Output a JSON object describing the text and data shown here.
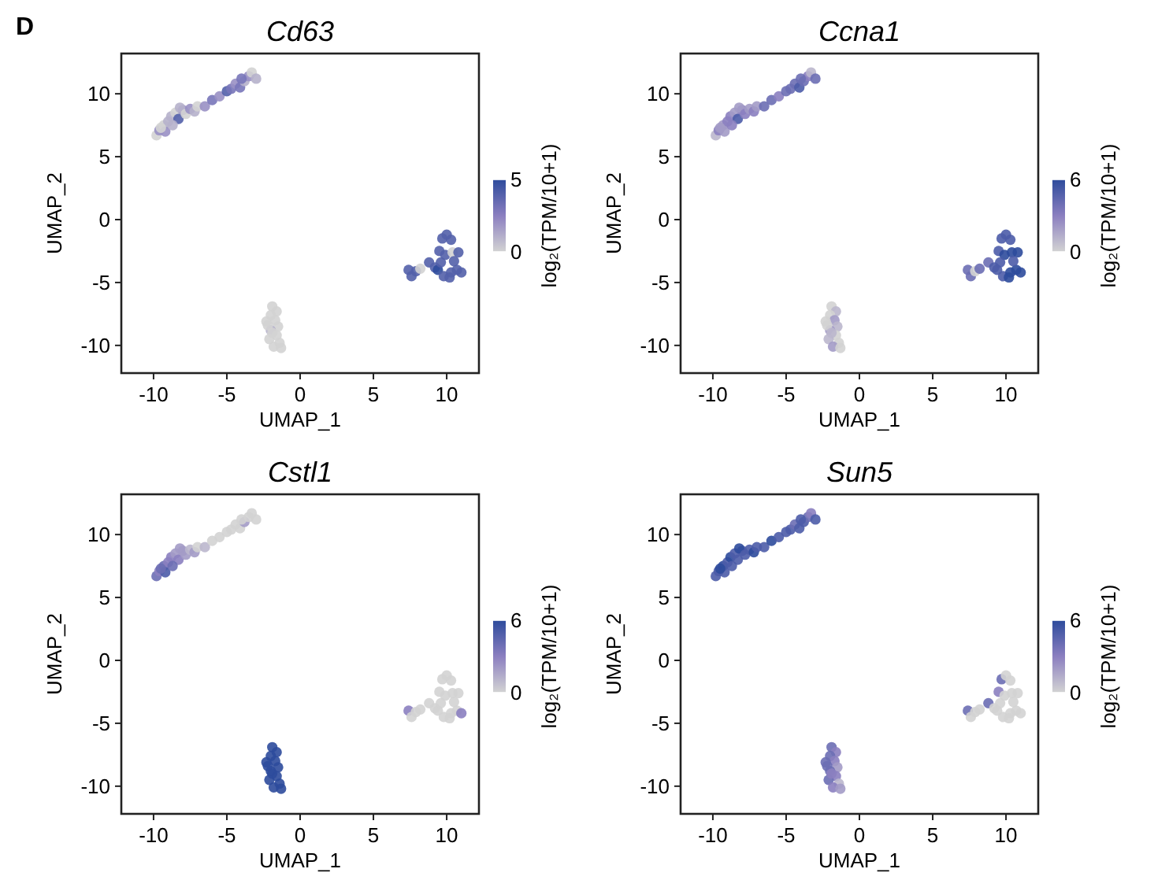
{
  "chart_data": [
    {
      "type": "scatter",
      "title": "Cd63",
      "xlabel": "UMAP_1",
      "ylabel": "UMAP_2",
      "clabel": "log₂(TPM/10+1)",
      "annotations": [
        "D"
      ],
      "marker": "circle",
      "xlim": [
        -12.2,
        12.2
      ],
      "ylim": [
        -12.2,
        13.2
      ],
      "xticks": [
        -10,
        -5,
        0,
        5,
        10
      ],
      "yticks": [
        -10,
        -5,
        0,
        5,
        10
      ],
      "clim": [
        0,
        5
      ],
      "cticks": [
        0,
        5
      ],
      "x": [
        -9.8,
        -9.6,
        -9.3,
        -9.0,
        -9.2,
        -8.8,
        -8.5,
        -8.3,
        -8.0,
        -8.2,
        -7.8,
        -7.5,
        -7.2,
        -7.0,
        -6.5,
        -6.0,
        -5.5,
        -5.0,
        -4.7,
        -4.4,
        -4.1,
        -3.8,
        -3.5,
        -3.3,
        -3.0,
        -4.0,
        -8.7,
        -9.5,
        -1.9,
        -1.6,
        -2.0,
        -1.7,
        -2.3,
        -1.5,
        -2.0,
        -1.6,
        -2.1,
        -1.4,
        -1.8,
        -1.3,
        -2.2,
        -1.9,
        7.4,
        7.6,
        7.9,
        8.2,
        8.8,
        9.2,
        9.5,
        9.7,
        10.0,
        10.3,
        9.9,
        10.4,
        10.8,
        9.4,
        9.8,
        10.3,
        10.7,
        11.0,
        10.5,
        9.6,
        10.2
      ],
      "values": [
        6.7,
        7.1,
        7.5,
        7.8,
        7.0,
        8.2,
        8.5,
        8.0,
        8.7,
        8.9,
        8.4,
        8.8,
        8.6,
        9.0,
        9.0,
        9.5,
        9.8,
        10.2,
        10.4,
        10.8,
        10.5,
        11.0,
        11.4,
        11.7,
        11.2,
        11.2,
        7.5,
        7.3,
        -6.9,
        -7.3,
        -7.6,
        -8.0,
        -8.1,
        -8.5,
        -8.8,
        -9.2,
        -9.5,
        -9.8,
        -10.1,
        -10.2,
        -8.4,
        -9.0,
        -4.0,
        -4.5,
        -4.1,
        -3.9,
        -3.4,
        -3.8,
        -2.5,
        -1.5,
        -1.2,
        -1.6,
        -2.8,
        -2.6,
        -2.6,
        -4.0,
        -4.5,
        -4.2,
        -4.0,
        -4.2,
        -3.3,
        -3.4,
        -4.6
      ],
      "cvalues": [
        0,
        2,
        0,
        1,
        2,
        1,
        0,
        4,
        2,
        1,
        0,
        2,
        1,
        0,
        2,
        3,
        2,
        4,
        3,
        2,
        3,
        1,
        2,
        0,
        1,
        3,
        1,
        0,
        0,
        0,
        0,
        0,
        0,
        0,
        1,
        0,
        0,
        0,
        0,
        0,
        0,
        0,
        4,
        4,
        4,
        0,
        4,
        4,
        4,
        4,
        4,
        4,
        4,
        0,
        4,
        5,
        4,
        4,
        4,
        4,
        4,
        4,
        4
      ]
    },
    {
      "type": "scatter",
      "title": "Ccna1",
      "xlabel": "UMAP_1",
      "ylabel": "UMAP_2",
      "clabel": "log₂(TPM/10+1)",
      "marker": "circle",
      "xlim": [
        -12.2,
        12.2
      ],
      "ylim": [
        -12.2,
        13.2
      ],
      "xticks": [
        -10,
        -5,
        0,
        5,
        10
      ],
      "yticks": [
        -10,
        -5,
        0,
        5,
        10
      ],
      "clim": [
        0,
        6
      ],
      "cticks": [
        0,
        6
      ],
      "x": [
        -9.8,
        -9.6,
        -9.3,
        -9.0,
        -9.2,
        -8.8,
        -8.5,
        -8.3,
        -8.0,
        -8.2,
        -7.8,
        -7.5,
        -7.2,
        -7.0,
        -6.5,
        -6.0,
        -5.5,
        -5.0,
        -4.7,
        -4.4,
        -4.1,
        -3.8,
        -3.5,
        -3.3,
        -3.0,
        -4.0,
        -8.7,
        -9.5,
        -1.9,
        -1.6,
        -2.0,
        -1.7,
        -2.3,
        -1.5,
        -2.0,
        -1.6,
        -2.1,
        -1.4,
        -1.8,
        -1.3,
        -2.2,
        -1.9,
        7.4,
        7.6,
        7.9,
        8.2,
        8.8,
        9.2,
        9.5,
        9.7,
        10.0,
        10.3,
        9.9,
        10.4,
        10.8,
        9.4,
        9.8,
        10.3,
        10.7,
        11.0,
        10.5,
        9.6,
        10.2
      ],
      "values": [
        6.7,
        7.1,
        7.5,
        7.8,
        7.0,
        8.2,
        8.5,
        8.0,
        8.7,
        8.9,
        8.4,
        8.8,
        8.6,
        9.0,
        9.0,
        9.5,
        9.8,
        10.2,
        10.4,
        10.8,
        10.5,
        11.0,
        11.4,
        11.7,
        11.2,
        11.2,
        7.5,
        7.3,
        -6.9,
        -7.3,
        -7.6,
        -8.0,
        -8.1,
        -8.5,
        -8.8,
        -9.2,
        -9.5,
        -9.8,
        -10.1,
        -10.2,
        -8.4,
        -9.0,
        -4.0,
        -4.5,
        -4.1,
        -3.9,
        -3.4,
        -3.8,
        -2.5,
        -1.5,
        -1.2,
        -1.6,
        -2.8,
        -2.6,
        -2.6,
        -4.0,
        -4.5,
        -4.2,
        -4.0,
        -4.2,
        -3.3,
        -3.4,
        -4.6
      ],
      "cvalues": [
        1,
        3,
        2,
        3,
        2,
        3,
        2,
        5,
        3,
        2,
        3,
        2,
        3,
        2,
        4,
        4,
        3,
        4,
        4,
        4,
        5,
        4,
        3,
        1,
        4,
        4,
        3,
        2,
        0,
        1,
        0,
        2,
        0,
        1,
        2,
        0,
        1,
        0,
        2,
        0,
        0,
        1,
        4,
        4,
        0,
        4,
        4,
        5,
        5,
        5,
        5,
        5,
        6,
        6,
        6,
        5,
        5,
        6,
        6,
        6,
        5,
        5,
        6
      ]
    },
    {
      "type": "scatter",
      "title": "Cstl1",
      "xlabel": "UMAP_1",
      "ylabel": "UMAP_2",
      "clabel": "log₂(TPM/10+1)",
      "marker": "circle",
      "xlim": [
        -12.2,
        12.2
      ],
      "ylim": [
        -12.2,
        13.2
      ],
      "xticks": [
        -10,
        -5,
        0,
        5,
        10
      ],
      "yticks": [
        -10,
        -5,
        0,
        5,
        10
      ],
      "clim": [
        0,
        6
      ],
      "cticks": [
        0,
        6
      ],
      "x": [
        -9.8,
        -9.6,
        -9.3,
        -9.0,
        -9.2,
        -8.8,
        -8.5,
        -8.3,
        -8.0,
        -8.2,
        -7.8,
        -7.5,
        -7.2,
        -7.0,
        -6.5,
        -6.0,
        -5.5,
        -5.0,
        -4.7,
        -4.4,
        -4.1,
        -3.8,
        -3.5,
        -3.3,
        -3.0,
        -4.0,
        -8.7,
        -9.5,
        -1.9,
        -1.6,
        -2.0,
        -1.7,
        -2.3,
        -1.5,
        -2.0,
        -1.6,
        -2.1,
        -1.4,
        -1.8,
        -1.3,
        -2.2,
        -1.9,
        7.4,
        7.6,
        7.9,
        8.2,
        8.8,
        9.2,
        9.5,
        9.7,
        10.0,
        10.3,
        9.9,
        10.4,
        10.8,
        9.4,
        9.8,
        10.3,
        10.7,
        11.0,
        10.5,
        9.6,
        10.2
      ],
      "values": [
        6.7,
        7.1,
        7.5,
        7.8,
        7.0,
        8.2,
        8.5,
        8.0,
        8.7,
        8.9,
        8.4,
        8.8,
        8.6,
        9.0,
        9.0,
        9.5,
        9.8,
        10.2,
        10.4,
        10.8,
        10.5,
        11.0,
        11.4,
        11.7,
        11.2,
        11.2,
        7.5,
        7.3,
        -6.9,
        -7.3,
        -7.6,
        -8.0,
        -8.1,
        -8.5,
        -8.8,
        -9.2,
        -9.5,
        -9.8,
        -10.1,
        -10.2,
        -8.4,
        -9.0,
        -4.0,
        -4.5,
        -4.1,
        -3.9,
        -3.4,
        -3.8,
        -2.5,
        -1.5,
        -1.2,
        -1.6,
        -2.8,
        -2.6,
        -2.6,
        -4.0,
        -4.5,
        -4.2,
        -4.0,
        -4.2,
        -3.3,
        -3.4,
        -4.6
      ],
      "cvalues": [
        4,
        3,
        4,
        3,
        5,
        3,
        2,
        3,
        2,
        2,
        2,
        1,
        2,
        0,
        1,
        0,
        0,
        0,
        0,
        0,
        0,
        2,
        0,
        0,
        0,
        0,
        4,
        4,
        6,
        6,
        6,
        6,
        6,
        6,
        6,
        6,
        6,
        6,
        6,
        6,
        6,
        6,
        3,
        0,
        0,
        0,
        0,
        0,
        0,
        0,
        0,
        0,
        0,
        0,
        0,
        0,
        0,
        0,
        0,
        3,
        0,
        0,
        0
      ]
    },
    {
      "type": "scatter",
      "title": "Sun5",
      "xlabel": "UMAP_1",
      "ylabel": "UMAP_2",
      "clabel": "log₂(TPM/10+1)",
      "marker": "circle",
      "xlim": [
        -12.2,
        12.2
      ],
      "ylim": [
        -12.2,
        13.2
      ],
      "xticks": [
        -10,
        -5,
        0,
        5,
        10
      ],
      "yticks": [
        -10,
        -5,
        0,
        5,
        10
      ],
      "clim": [
        0,
        6
      ],
      "cticks": [
        0,
        6
      ],
      "x": [
        -9.8,
        -9.6,
        -9.3,
        -9.0,
        -9.2,
        -8.8,
        -8.5,
        -8.3,
        -8.0,
        -8.2,
        -7.8,
        -7.5,
        -7.2,
        -7.0,
        -6.5,
        -6.0,
        -5.5,
        -5.0,
        -4.7,
        -4.4,
        -4.1,
        -3.8,
        -3.5,
        -3.3,
        -3.0,
        -4.0,
        -8.7,
        -9.5,
        -1.9,
        -1.6,
        -2.0,
        -1.7,
        -2.3,
        -1.5,
        -2.0,
        -1.6,
        -2.1,
        -1.4,
        -1.8,
        -1.3,
        -2.2,
        -1.9,
        7.4,
        7.6,
        7.9,
        8.2,
        8.8,
        9.2,
        9.5,
        9.7,
        10.0,
        10.3,
        9.9,
        10.4,
        10.8,
        9.4,
        9.8,
        10.3,
        10.7,
        11.0,
        10.5,
        9.6,
        10.2
      ],
      "values": [
        6.7,
        7.1,
        7.5,
        7.8,
        7.0,
        8.2,
        8.5,
        8.0,
        8.7,
        8.9,
        8.4,
        8.8,
        8.6,
        9.0,
        9.0,
        9.5,
        9.8,
        10.2,
        10.4,
        10.8,
        10.5,
        11.0,
        11.4,
        11.7,
        11.2,
        11.2,
        7.5,
        7.3,
        -6.9,
        -7.3,
        -7.6,
        -8.0,
        -8.1,
        -8.5,
        -8.8,
        -9.2,
        -9.5,
        -9.8,
        -10.1,
        -10.2,
        -8.4,
        -9.0,
        -4.0,
        -4.5,
        -4.1,
        -3.9,
        -3.4,
        -3.8,
        -2.5,
        -1.5,
        -1.2,
        -1.6,
        -2.8,
        -2.6,
        -2.6,
        -4.0,
        -4.5,
        -4.2,
        -4.0,
        -4.2,
        -3.3,
        -3.4,
        -4.6
      ],
      "cvalues": [
        5,
        5,
        6,
        5,
        5,
        6,
        5,
        5,
        5,
        6,
        5,
        5,
        6,
        5,
        5,
        6,
        5,
        5,
        5,
        4,
        5,
        5,
        4,
        3,
        5,
        5,
        5,
        6,
        4,
        3,
        4,
        3,
        4,
        2,
        4,
        3,
        4,
        1,
        3,
        2,
        4,
        3,
        4,
        0,
        0,
        0,
        4,
        0,
        3,
        4,
        0,
        0,
        0,
        0,
        0,
        0,
        0,
        0,
        0,
        0,
        0,
        0,
        0
      ]
    }
  ]
}
